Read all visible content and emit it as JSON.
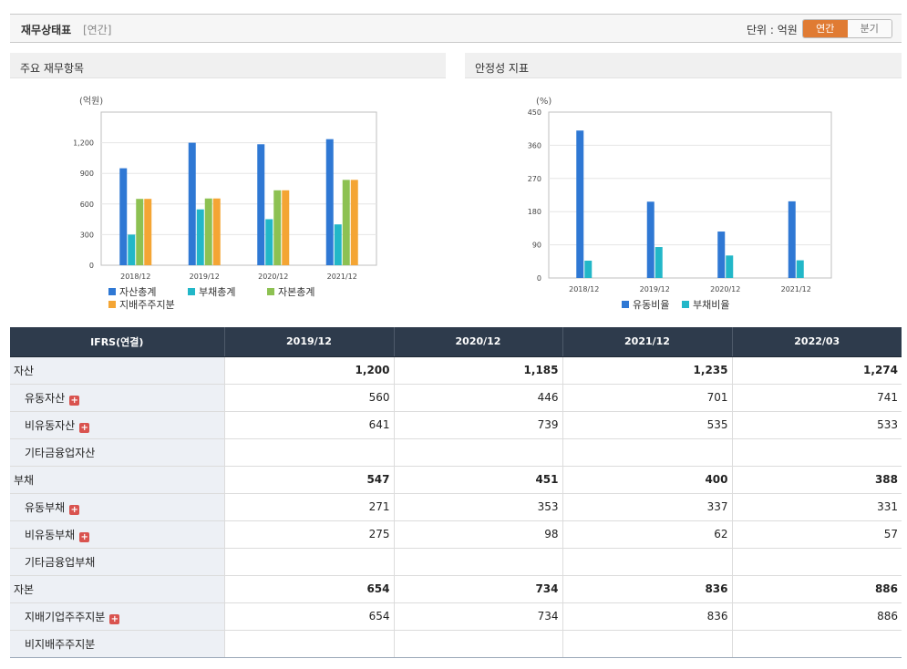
{
  "header": {
    "title": "재무상태표",
    "subtitle": "[연간]",
    "unit": "단위 : 억원",
    "toggle_annual": "연간",
    "toggle_quarter": "분기",
    "accent_color": "#e07b33"
  },
  "panels": {
    "left_title": "주요 재무항목",
    "right_title": "안정성 지표"
  },
  "chart_data": [
    {
      "type": "bar",
      "title": "주요 재무항목",
      "ylabel": "(억원)",
      "categories": [
        "2018/12",
        "2019/12",
        "2020/12",
        "2021/12"
      ],
      "ylim": [
        0,
        1500
      ],
      "yticks": [
        0,
        300,
        600,
        900,
        1200
      ],
      "ytick_labels": [
        "0",
        "300",
        "600",
        "900",
        "1,200"
      ],
      "grid": true,
      "legend_position": "bottom-left",
      "series": [
        {
          "name": "자산총계",
          "color": "#2f78d4",
          "values": [
            950,
            1200,
            1185,
            1235
          ]
        },
        {
          "name": "부채총계",
          "color": "#22b7c8",
          "values": [
            300,
            547,
            451,
            400
          ]
        },
        {
          "name": "자본총계",
          "color": "#8dc152",
          "values": [
            650,
            654,
            734,
            836
          ]
        },
        {
          "name": "지배주주지분",
          "color": "#f4a534",
          "values": [
            650,
            654,
            734,
            836
          ]
        }
      ]
    },
    {
      "type": "bar",
      "title": "안정성 지표",
      "ylabel": "(%)",
      "categories": [
        "2018/12",
        "2019/12",
        "2020/12",
        "2021/12"
      ],
      "ylim": [
        0,
        450
      ],
      "yticks": [
        0,
        90,
        180,
        270,
        360,
        450
      ],
      "ytick_labels": [
        "0",
        "90",
        "180",
        "270",
        "360",
        "450"
      ],
      "grid": true,
      "legend_position": "bottom-center",
      "series": [
        {
          "name": "유동비율",
          "color": "#2f78d4",
          "values": [
            400,
            207,
            126,
            208
          ]
        },
        {
          "name": "부채비율",
          "color": "#22b7c8",
          "values": [
            47,
            84,
            61,
            48
          ]
        }
      ]
    }
  ],
  "table": {
    "header_label": "IFRS(연결)",
    "periods": [
      "2019/12",
      "2020/12",
      "2021/12",
      "2022/03"
    ],
    "rows": [
      {
        "label": "자산",
        "kind": "main",
        "expand": false,
        "values": [
          "1,200",
          "1,185",
          "1,235",
          "1,274"
        ]
      },
      {
        "label": "유동자산",
        "kind": "sub",
        "expand": true,
        "values": [
          "560",
          "446",
          "701",
          "741"
        ]
      },
      {
        "label": "비유동자산",
        "kind": "sub",
        "expand": true,
        "values": [
          "641",
          "739",
          "535",
          "533"
        ]
      },
      {
        "label": "기타금융업자산",
        "kind": "sub",
        "expand": false,
        "values": [
          "",
          "",
          "",
          ""
        ]
      },
      {
        "label": "부채",
        "kind": "main",
        "expand": false,
        "values": [
          "547",
          "451",
          "400",
          "388"
        ]
      },
      {
        "label": "유동부채",
        "kind": "sub",
        "expand": true,
        "values": [
          "271",
          "353",
          "337",
          "331"
        ]
      },
      {
        "label": "비유동부채",
        "kind": "sub",
        "expand": true,
        "values": [
          "275",
          "98",
          "62",
          "57"
        ]
      },
      {
        "label": "기타금융업부채",
        "kind": "sub",
        "expand": false,
        "values": [
          "",
          "",
          "",
          ""
        ]
      },
      {
        "label": "자본",
        "kind": "main",
        "expand": false,
        "values": [
          "654",
          "734",
          "836",
          "886"
        ]
      },
      {
        "label": "지배기업주주지분",
        "kind": "sub",
        "expand": true,
        "values": [
          "654",
          "734",
          "836",
          "886"
        ]
      },
      {
        "label": "비지배주주지분",
        "kind": "sub",
        "expand": false,
        "values": [
          "",
          "",
          "",
          ""
        ]
      }
    ]
  }
}
